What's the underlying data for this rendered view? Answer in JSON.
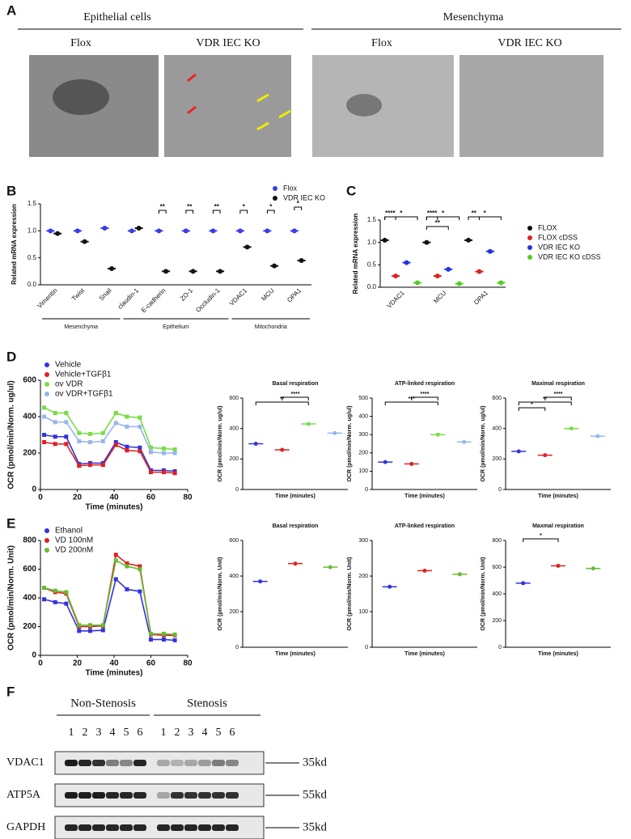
{
  "panel_labels": [
    "A",
    "B",
    "C",
    "D",
    "E",
    "F"
  ],
  "panel_a": {
    "groups": [
      "Epithelial cells",
      "Mesenchyma"
    ],
    "images": [
      "Flox",
      "VDR IEC KO",
      "Flox",
      "VDR IEC KO"
    ]
  },
  "chart_data": [
    {
      "type": "dot",
      "ylabel": "Related mRNA expression",
      "categories": [
        "Vimentin",
        "Twist",
        "Snail",
        "claudin-1",
        "E-cadherin",
        "ZO-1",
        "Occludin-1",
        "VDAC1",
        "MCU",
        "OPA1"
      ],
      "series": [
        {
          "name": "Flox",
          "color": "#3a3ae6",
          "values": [
            1.0,
            1.0,
            1.05,
            1.0,
            1.0,
            1.0,
            1.0,
            1.0,
            1.0,
            1.0
          ]
        },
        {
          "name": "VDR IEC KO",
          "color": "#111111",
          "values": [
            0.95,
            0.8,
            0.3,
            1.05,
            0.25,
            0.25,
            0.25,
            0.7,
            0.35,
            0.45
          ]
        }
      ],
      "ylim": [
        0,
        1.5
      ],
      "yticks": [
        {
          "value": 0,
          "label": "0.0"
        },
        {
          "value": 0.5,
          "label": "0.5"
        },
        {
          "value": 1,
          "label": "1.0"
        },
        {
          "value": 1.5,
          "label": "1.5"
        }
      ],
      "groups": [
        "Mesenchyma",
        "Epithelium",
        "Mitochondria"
      ],
      "annotations": [
        "**",
        "**",
        "**",
        "*",
        "*",
        "*"
      ]
    },
    {
      "type": "dot",
      "ylabel": "Related mRNA expression",
      "categories": [
        "VDAC1",
        "MCU",
        "OPA1"
      ],
      "series": [
        {
          "name": "FLOX",
          "color": "#111111",
          "values": [
            1.05,
            1.0,
            1.05
          ]
        },
        {
          "name": "FLOX cDSS",
          "color": "#dd2222",
          "values": [
            0.25,
            0.25,
            0.35
          ]
        },
        {
          "name": "VDR IEC KO",
          "color": "#2233dd",
          "values": [
            0.55,
            0.4,
            0.8
          ]
        },
        {
          "name": "VDR IEC KO cDSS",
          "color": "#55cc22",
          "values": [
            0.1,
            0.08,
            0.1
          ]
        }
      ],
      "ylim": [
        0,
        1.5
      ],
      "yticks": [
        {
          "value": 0,
          "label": "0.0"
        },
        {
          "value": 0.5,
          "label": "0.5"
        },
        {
          "value": 1,
          "label": "1.0"
        },
        {
          "value": 1.5,
          "label": "1.5"
        }
      ],
      "annotations": [
        "****",
        "*",
        "****",
        "*",
        "**",
        "**",
        "*"
      ]
    },
    {
      "type": "line",
      "xlabel": "Time (minutes)",
      "ylabel": "OCR (pmol/min/Norm. ug/ul)",
      "x": [
        2,
        8,
        14,
        21,
        27,
        34,
        41,
        47,
        54,
        60,
        67,
        73
      ],
      "series": [
        {
          "name": "Vehicle",
          "color": "#3333dd",
          "values": [
            300,
            290,
            290,
            140,
            145,
            145,
            260,
            235,
            230,
            105,
            105,
            100
          ]
        },
        {
          "name": "Vehicle+TGFβ1",
          "color": "#dd2222",
          "values": [
            260,
            250,
            250,
            130,
            135,
            135,
            245,
            215,
            210,
            95,
            95,
            90
          ]
        },
        {
          "name": "ov VDR",
          "color": "#77dd44",
          "values": [
            450,
            420,
            420,
            310,
            305,
            310,
            420,
            400,
            395,
            230,
            225,
            220
          ]
        },
        {
          "name": "ov VDR+TGFβ1",
          "color": "#99b4ee",
          "values": [
            400,
            370,
            370,
            265,
            260,
            265,
            365,
            345,
            345,
            205,
            200,
            200
          ]
        }
      ],
      "xlim": [
        0,
        80
      ],
      "xticks": [
        0,
        20,
        40,
        60,
        80
      ],
      "ylim": [
        0,
        600
      ],
      "yticks": [
        0,
        200,
        400,
        600
      ]
    },
    {
      "type": "strip",
      "title": "Basal respiration",
      "xlabel": "Time (minutes)",
      "ylabel": "OCR (pmol/min/Norm. ug/ul)",
      "values": [
        300,
        260,
        430,
        370
      ],
      "colors": [
        "#3333dd",
        "#dd2222",
        "#77dd44",
        "#99b4ee"
      ],
      "ylim": [
        0,
        600
      ],
      "yticks": [
        0,
        200,
        400,
        600
      ],
      "annotations": [
        "**",
        "****"
      ]
    },
    {
      "type": "strip",
      "title": "ATP-linked respiration",
      "xlabel": "Time (minutes)",
      "ylabel": "OCR (pmol/min/Norm. ug/ul)",
      "values": [
        150,
        140,
        300,
        260
      ],
      "colors": [
        "#3333dd",
        "#dd2222",
        "#77dd44",
        "#99b4ee"
      ],
      "ylim": [
        0,
        500
      ],
      "yticks": [
        0,
        100,
        200,
        300,
        400,
        500
      ],
      "annotations": [
        "***",
        "****"
      ]
    },
    {
      "type": "strip",
      "title": "Maximal respiration",
      "xlabel": "Time (minutes)",
      "ylabel": "OCR (pmol/min/Norm. ug/ul)",
      "values": [
        250,
        225,
        400,
        350
      ],
      "colors": [
        "#3333dd",
        "#dd2222",
        "#77dd44",
        "#99b4ee"
      ],
      "ylim": [
        0,
        600
      ],
      "yticks": [
        0,
        200,
        400,
        600
      ],
      "annotations": [
        "*",
        "**",
        "****"
      ]
    },
    {
      "type": "line",
      "xlabel": "Time (minutes)",
      "ylabel": "OCR (pmol/min/Norm. Unit)",
      "x": [
        2,
        8,
        14,
        21,
        27,
        34,
        41,
        47,
        54,
        60,
        67,
        73
      ],
      "series": [
        {
          "name": "Ethanol",
          "color": "#3333dd",
          "values": [
            390,
            370,
            360,
            170,
            170,
            175,
            530,
            460,
            445,
            110,
            110,
            105
          ]
        },
        {
          "name": "VD 100nM",
          "color": "#dd2222",
          "values": [
            470,
            440,
            430,
            200,
            200,
            205,
            700,
            640,
            620,
            145,
            140,
            140
          ]
        },
        {
          "name": "VD 200nM",
          "color": "#66bb33",
          "values": [
            470,
            450,
            440,
            210,
            210,
            210,
            660,
            620,
            600,
            150,
            150,
            145
          ]
        }
      ],
      "xlim": [
        0,
        80
      ],
      "xticks": [
        0,
        20,
        40,
        60,
        80
      ],
      "ylim": [
        0,
        800
      ],
      "yticks": [
        0,
        200,
        400,
        600,
        800
      ]
    },
    {
      "type": "strip",
      "title": "Basal respiration",
      "xlabel": "Time (minutes)",
      "ylabel": "OCR (pmol/min/Norm. Unit)",
      "values": [
        370,
        470,
        450
      ],
      "colors": [
        "#3333dd",
        "#dd2222",
        "#66bb33"
      ],
      "ylim": [
        0,
        600
      ],
      "yticks": [
        0,
        200,
        400,
        600
      ]
    },
    {
      "type": "strip",
      "title": "ATP-linked respiration",
      "xlabel": "Time (minutes)",
      "ylabel": "OCR (pmol/min/Norm. Unit)",
      "values": [
        170,
        215,
        205
      ],
      "colors": [
        "#3333dd",
        "#dd2222",
        "#66bb33"
      ],
      "ylim": [
        0,
        300
      ],
      "yticks": [
        0,
        100,
        200,
        300
      ]
    },
    {
      "type": "strip",
      "title": "Maxmal respiration",
      "xlabel": "Time (minutes)",
      "ylabel": "OCR (pmol/min/Norm. Unit)",
      "values": [
        480,
        610,
        590
      ],
      "colors": [
        "#3333dd",
        "#dd2222",
        "#66bb33"
      ],
      "ylim": [
        0,
        800
      ],
      "yticks": [
        0,
        200,
        400,
        600,
        800
      ],
      "annotations": [
        "*"
      ]
    }
  ],
  "panel_f": {
    "groups": [
      "Non-Stenosis",
      "Stenosis"
    ],
    "lanes": [
      "1",
      "2",
      "3",
      "4",
      "5",
      "6",
      "1",
      "2",
      "3",
      "4",
      "5",
      "6"
    ],
    "rows": [
      {
        "name": "VDAC1",
        "size": "35kd"
      },
      {
        "name": "ATP5A",
        "size": "55kd"
      },
      {
        "name": "GAPDH",
        "size": "35kd"
      }
    ]
  }
}
